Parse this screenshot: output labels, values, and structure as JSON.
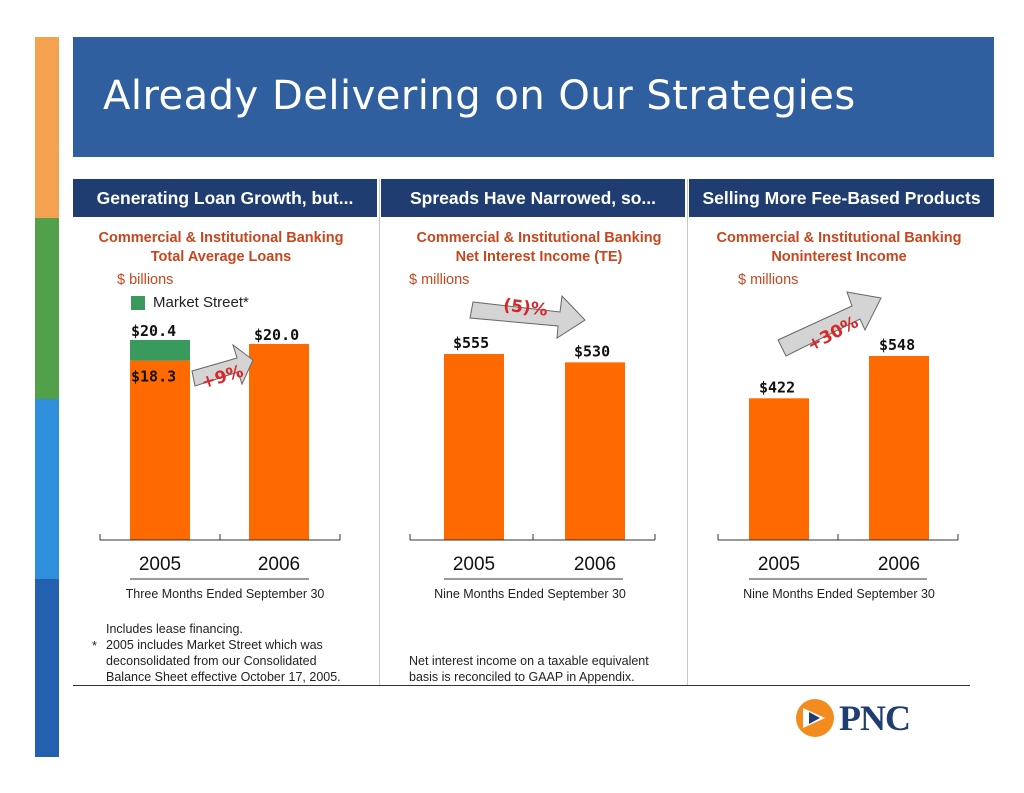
{
  "slide_title": "Already Delivering on Our Strategies",
  "colors": {
    "stripe": [
      "#f4a24f",
      "#53a04a",
      "#2f8fdc",
      "#2460b0"
    ],
    "header_bar": "#2f5f9f",
    "panel_header": "#1f3d70",
    "bar": "#ff6a00",
    "market_street": "#3a9a5e",
    "accent_text": "#c8461e",
    "arrow_fill": "#d4d4d4",
    "arrow_text": "#d9262a"
  },
  "panels": [
    {
      "header": "Generating Loan Growth, but...",
      "subtitle_line1": "Commercial & Institutional Banking",
      "subtitle_line2": "Total Average Loans",
      "unit": "$ billions",
      "legend": "Market Street*",
      "change_label": "+9%",
      "period": "Three Months Ended September 30",
      "notes": [
        "Includes lease financing.",
        "2005 includes Market Street which was",
        "deconsolidated from our Consolidated",
        "Balance Sheet effective October 17, 2005."
      ],
      "note_marker": "*"
    },
    {
      "header": "Spreads Have Narrowed, so...",
      "subtitle_line1": "Commercial & Institutional Banking",
      "subtitle_line2": "Net Interest Income (TE)",
      "unit": "$ millions",
      "change_label": "(5)%",
      "period": "Nine Months Ended September 30",
      "notes": [
        "Net interest income on a taxable equivalent",
        "basis is reconciled to GAAP in Appendix."
      ]
    },
    {
      "header": "Selling More Fee-Based Products",
      "subtitle_line1": "Commercial & Institutional Banking",
      "subtitle_line2": "Noninterest Income",
      "unit": "$ millions",
      "change_label": "+30%",
      "period": "Nine Months Ended September 30"
    }
  ],
  "chart_data": [
    {
      "type": "bar",
      "categories": [
        "2005",
        "2006"
      ],
      "series": [
        {
          "name": "",
          "values": [
            18.3,
            20.0
          ]
        },
        {
          "name": "Market Street*",
          "values": [
            2.1,
            0
          ]
        }
      ],
      "totals": [
        20.4,
        20.0
      ],
      "value_labels": [
        "$18.3",
        "$20.4",
        "$20.0"
      ],
      "ylim": [
        0,
        24
      ]
    },
    {
      "type": "bar",
      "categories": [
        "2005",
        "2006"
      ],
      "values": [
        555,
        530
      ],
      "value_labels": [
        "$555",
        "$530"
      ],
      "ylim": [
        0,
        600
      ]
    },
    {
      "type": "bar",
      "categories": [
        "2005",
        "2006"
      ],
      "values": [
        422,
        548
      ],
      "value_labels": [
        "$422",
        "$548"
      ],
      "ylim": [
        0,
        700
      ]
    }
  ],
  "logo": {
    "text": "PNC"
  }
}
